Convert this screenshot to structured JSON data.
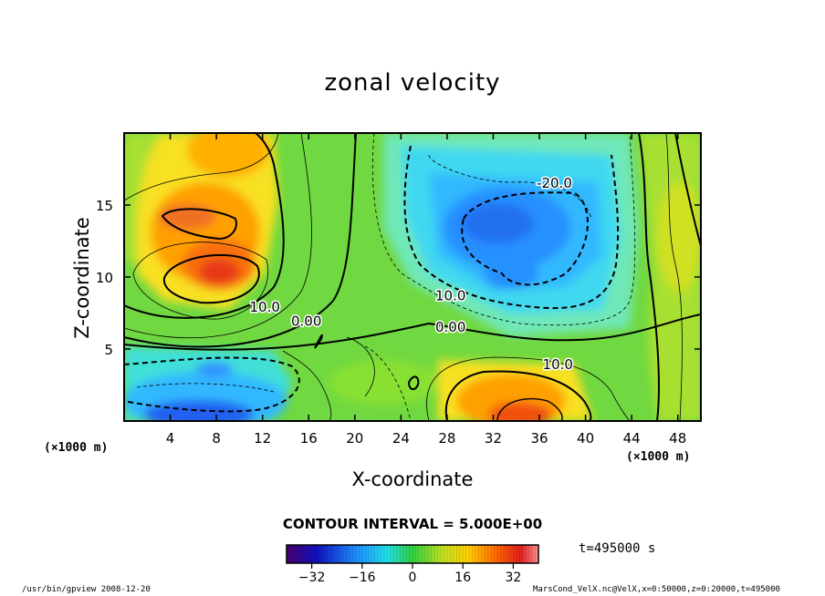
{
  "chart_data": {
    "type": "heatmap",
    "title": "zonal velocity",
    "xlabel": "X-coordinate",
    "ylabel": "Z-coordinate",
    "x_unit_label": "(×1000 m)",
    "xlim": [
      0,
      50
    ],
    "ylim": [
      0,
      20
    ],
    "x_ticks": [
      4,
      8,
      12,
      16,
      20,
      24,
      28,
      32,
      36,
      40,
      44,
      48
    ],
    "y_ticks": [
      5,
      10,
      15
    ],
    "contour_interval_label": "CONTOUR INTERVAL = 5.000E+00",
    "contour_labels": [
      {
        "text": "-20.0",
        "x": 37.3,
        "z": 16.2
      },
      {
        "text": "10.0",
        "x": 28.3,
        "z": 8.4
      },
      {
        "text": "0.00",
        "x": 28.3,
        "z": 6.2
      },
      {
        "text": "10.0",
        "x": 37.6,
        "z": 3.6
      },
      {
        "text": "10.0",
        "x": 12.2,
        "z": 7.6
      },
      {
        "text": "0.00",
        "x": 15.8,
        "z": 6.6
      }
    ],
    "features": [
      {
        "name": "eastward jet core",
        "x": 8.5,
        "z": 10.2,
        "value": 30
      },
      {
        "name": "eastward upper lobe",
        "x": 6.5,
        "z": 14,
        "value": 22
      },
      {
        "name": "westward upper cell",
        "x": 34,
        "z": 13.5,
        "value": -26
      },
      {
        "name": "eastward lower cell",
        "x": 34,
        "z": 1.5,
        "value": 30
      },
      {
        "name": "westward lower cell",
        "x": 7,
        "z": 1,
        "value": -30
      }
    ],
    "colorbar": {
      "min": -40,
      "max": 40,
      "ticks": [
        -32,
        -16,
        0,
        16,
        32
      ]
    },
    "time_label": "t=495000 s"
  },
  "footer": {
    "left": "/usr/bin/gpview   2008-12-20",
    "right": "MarsCond_VelX.nc@VelX,x=0:50000,z=0:20000,t=495000"
  }
}
